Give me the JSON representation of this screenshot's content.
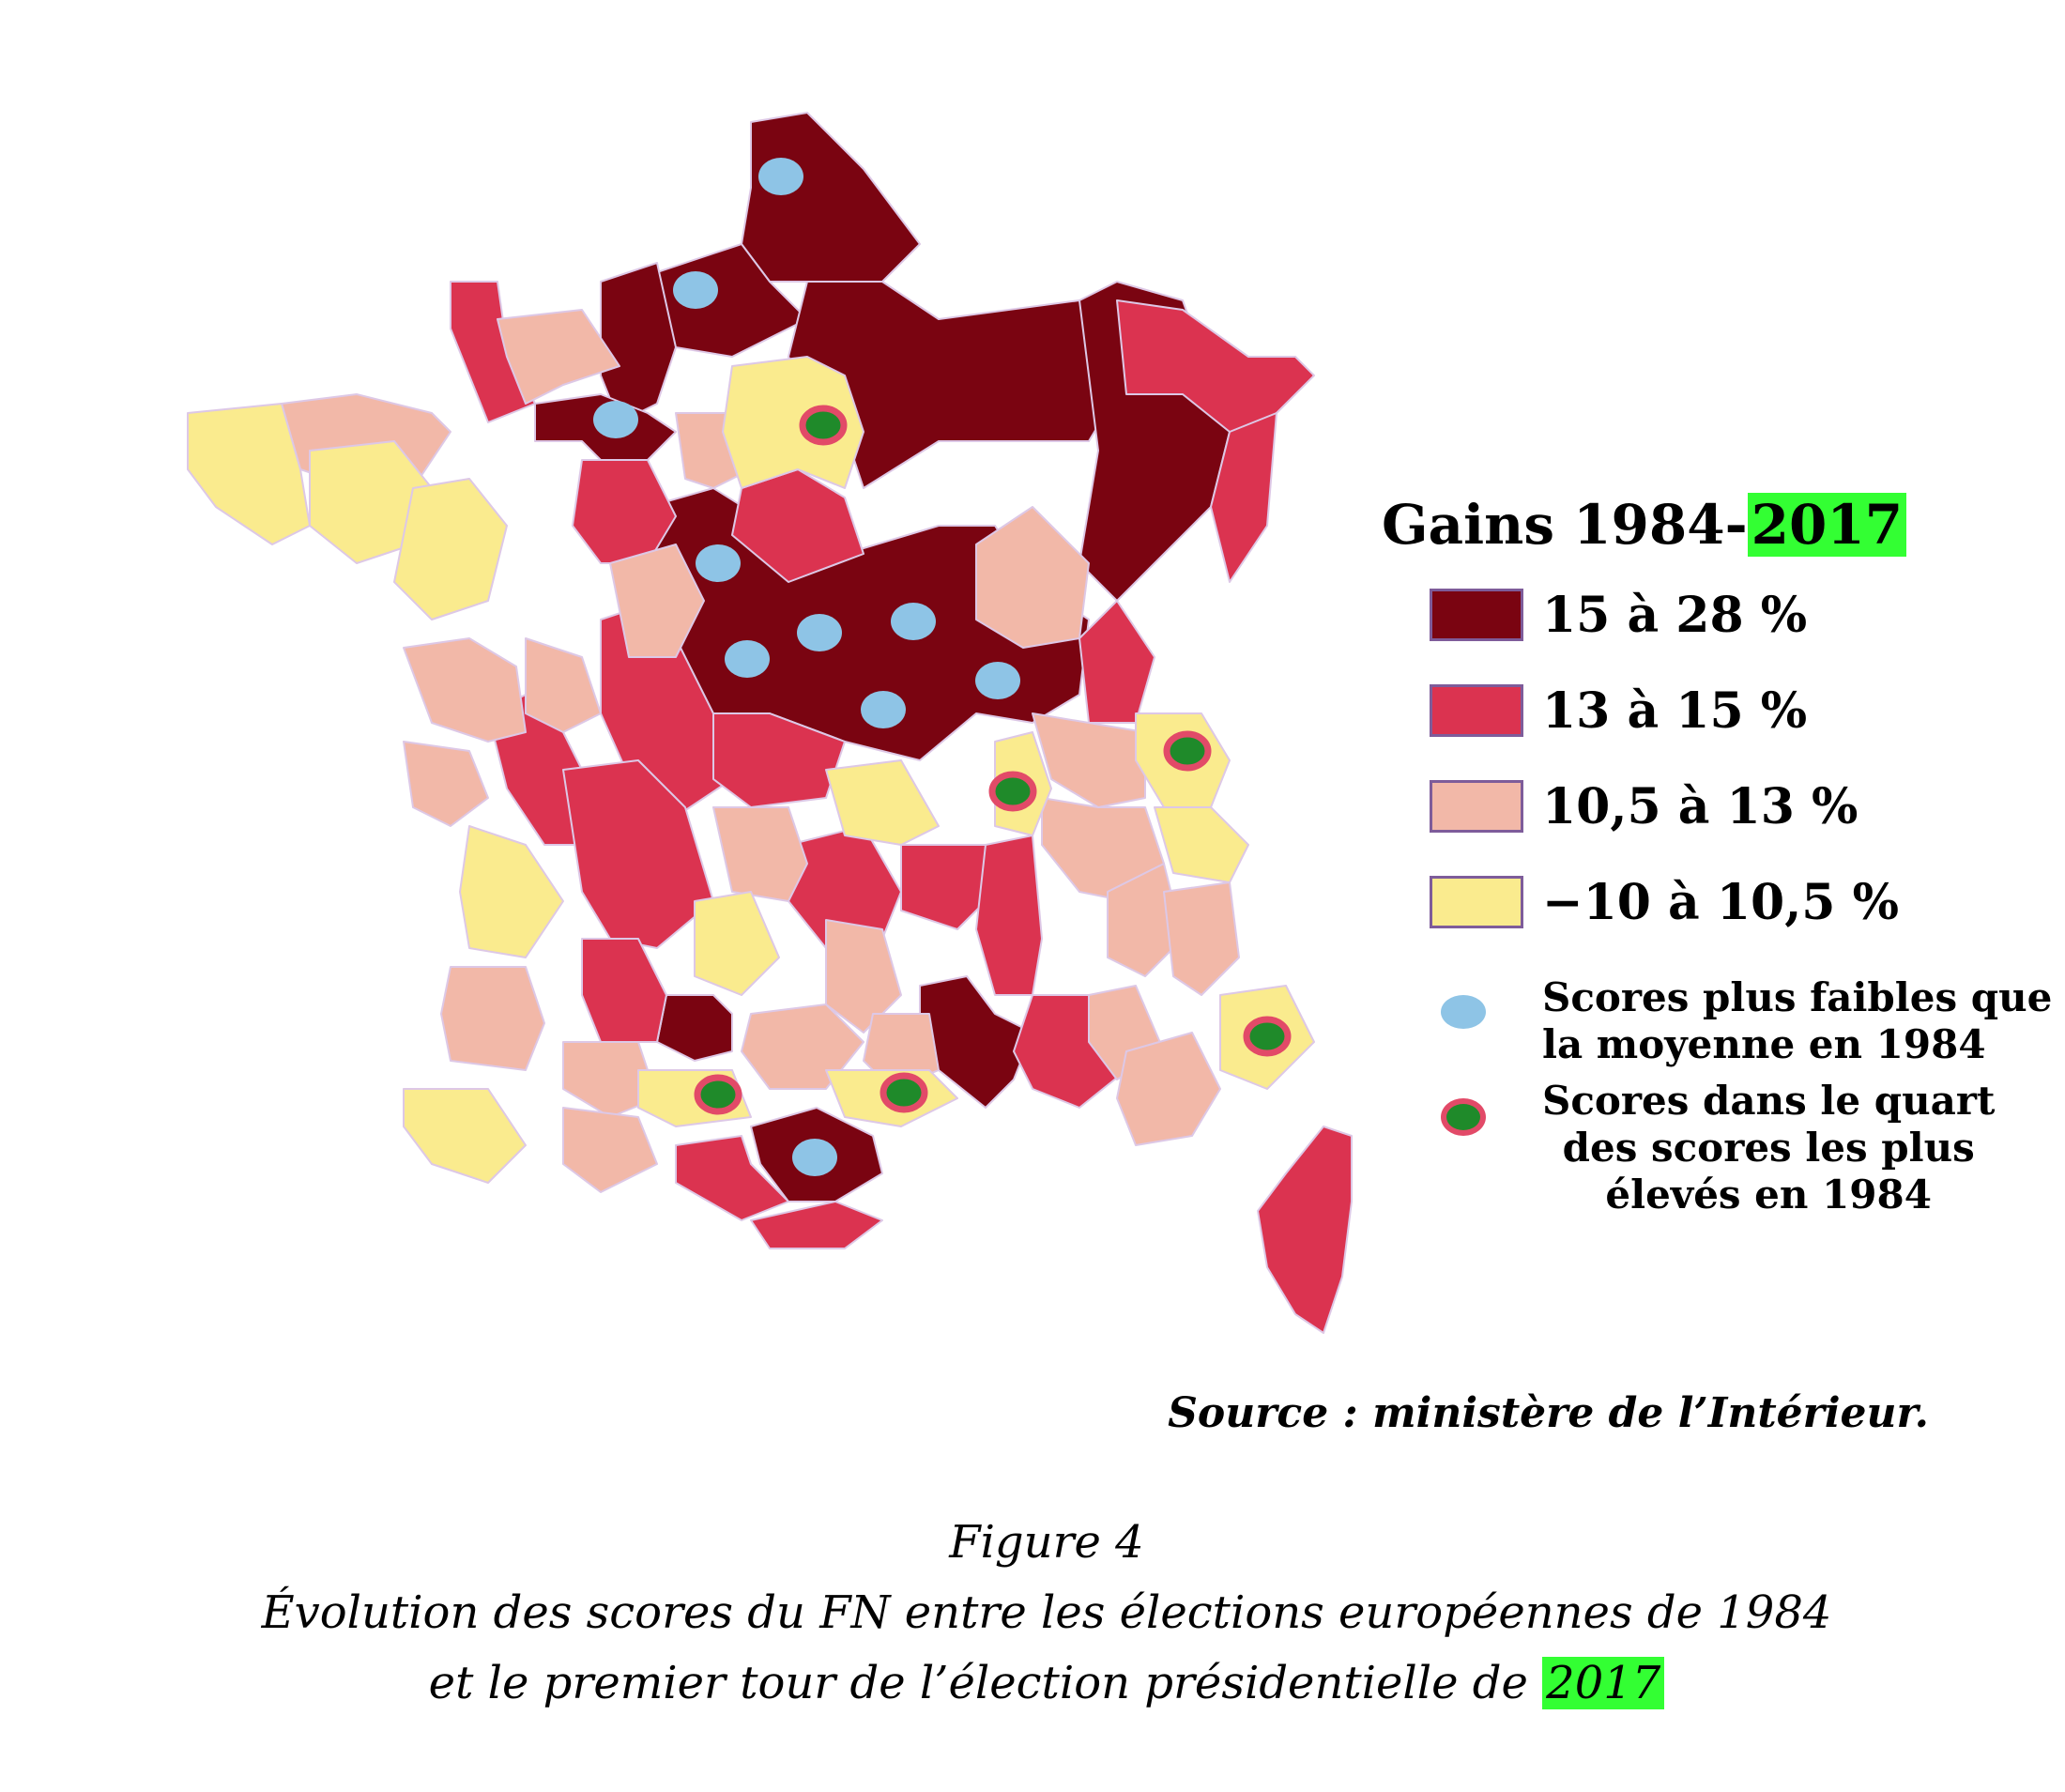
{
  "legend": {
    "title_prefix": "Gains 1984-",
    "title_highlight": "2017",
    "classes": [
      {
        "key": "c1",
        "label": "15 à 28 %",
        "color": "#7a0411"
      },
      {
        "key": "c2",
        "label": "13 à 15 %",
        "color": "#db3350"
      },
      {
        "key": "c3",
        "label": "10,5 à 13 %",
        "color": "#f2b8a8"
      },
      {
        "key": "c4",
        "label": "−10 à 10,5 %",
        "color": "#faeb8e"
      }
    ],
    "markers": [
      {
        "type": "blue",
        "lines": [
          "Scores plus faibles que",
          "la moyenne en 1984"
        ],
        "color": "#8ec4e6"
      },
      {
        "type": "green",
        "lines": [
          "Scores dans le quart",
          "des scores les plus",
          "élevés en 1984"
        ],
        "color": "#1f8a2a",
        "ring": "#e24a68"
      }
    ]
  },
  "source": "Source : ministère de l’Intérieur.",
  "caption": {
    "figure": "Figure 4",
    "line1": "Évolution des scores du FN entre les élections européennes de 1984",
    "line2_prefix": "et le premier tour de l’élection présidentielle de ",
    "line2_highlight": "2017",
    "highlight_color": "#33ff33"
  }
}
